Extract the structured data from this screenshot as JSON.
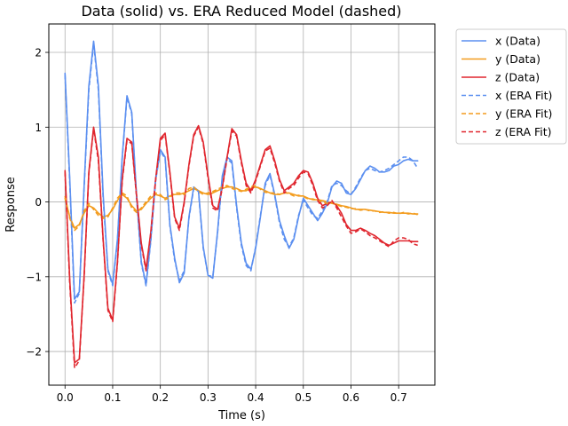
{
  "chart_data": {
    "type": "line",
    "title": "Data (solid) vs. ERA Reduced Model (dashed)",
    "xlabel": "Time (s)",
    "ylabel": "Response",
    "xlim": [
      -0.034,
      0.776
    ],
    "ylim": [
      -2.45,
      2.38
    ],
    "xticks": [
      0.0,
      0.1,
      0.2,
      0.3,
      0.4,
      0.5,
      0.6,
      0.7
    ],
    "xtick_labels": [
      "0.0",
      "0.1",
      "0.2",
      "0.3",
      "0.4",
      "0.5",
      "0.6",
      "0.7"
    ],
    "yticks": [
      -2,
      -1,
      0,
      1,
      2
    ],
    "ytick_labels": [
      "−2",
      "−1",
      "0",
      "1",
      "2"
    ],
    "grid": true,
    "legend_position": "outside-top-right",
    "series": [
      {
        "name": "x (Data)",
        "color": "#5b8ff0",
        "dash": false,
        "x": [
          0.0,
          0.01,
          0.02,
          0.03,
          0.04,
          0.05,
          0.06,
          0.07,
          0.08,
          0.09,
          0.1,
          0.11,
          0.12,
          0.13,
          0.14,
          0.15,
          0.16,
          0.17,
          0.18,
          0.19,
          0.2,
          0.21,
          0.22,
          0.23,
          0.24,
          0.25,
          0.26,
          0.27,
          0.28,
          0.29,
          0.3,
          0.31,
          0.32,
          0.33,
          0.34,
          0.35,
          0.36,
          0.37,
          0.38,
          0.39,
          0.4,
          0.41,
          0.42,
          0.43,
          0.44,
          0.45,
          0.46,
          0.47,
          0.48,
          0.49,
          0.5,
          0.51,
          0.52,
          0.53,
          0.54,
          0.55,
          0.56,
          0.57,
          0.58,
          0.59,
          0.6,
          0.61,
          0.62,
          0.63,
          0.64,
          0.65,
          0.66,
          0.67,
          0.68,
          0.69,
          0.7,
          0.71,
          0.72,
          0.73,
          0.74
        ],
        "y": [
          1.72,
          0.3,
          -1.3,
          -1.2,
          0.2,
          1.55,
          2.15,
          1.55,
          0.1,
          -0.9,
          -1.1,
          -0.5,
          0.6,
          1.42,
          1.2,
          0.1,
          -0.8,
          -1.1,
          -0.5,
          0.3,
          0.7,
          0.6,
          -0.3,
          -0.75,
          -1.08,
          -0.95,
          -0.2,
          0.2,
          0.15,
          -0.6,
          -0.98,
          -1.02,
          -0.4,
          0.35,
          0.6,
          0.55,
          -0.05,
          -0.55,
          -0.82,
          -0.9,
          -0.62,
          -0.2,
          0.25,
          0.38,
          0.1,
          -0.25,
          -0.45,
          -0.62,
          -0.5,
          -0.2,
          0.05,
          -0.05,
          -0.15,
          -0.25,
          -0.15,
          -0.02,
          0.2,
          0.28,
          0.25,
          0.12,
          0.1,
          0.18,
          0.3,
          0.42,
          0.48,
          0.45,
          0.4,
          0.4,
          0.42,
          0.48,
          0.5,
          0.55,
          0.57,
          0.55,
          0.55
        ]
      },
      {
        "name": "y (Data)",
        "color": "#f39c1e",
        "dash": false,
        "x": [
          0.0,
          0.01,
          0.02,
          0.03,
          0.04,
          0.05,
          0.06,
          0.07,
          0.08,
          0.09,
          0.1,
          0.11,
          0.12,
          0.13,
          0.14,
          0.15,
          0.16,
          0.17,
          0.18,
          0.19,
          0.2,
          0.21,
          0.22,
          0.23,
          0.24,
          0.25,
          0.26,
          0.27,
          0.28,
          0.29,
          0.3,
          0.31,
          0.32,
          0.33,
          0.34,
          0.35,
          0.36,
          0.37,
          0.38,
          0.39,
          0.4,
          0.41,
          0.42,
          0.43,
          0.44,
          0.45,
          0.46,
          0.47,
          0.48,
          0.49,
          0.5,
          0.51,
          0.52,
          0.53,
          0.54,
          0.55,
          0.56,
          0.57,
          0.58,
          0.59,
          0.6,
          0.61,
          0.62,
          0.63,
          0.64,
          0.65,
          0.66,
          0.67,
          0.68,
          0.69,
          0.7,
          0.71,
          0.72,
          0.73,
          0.74
        ],
        "y": [
          0.05,
          -0.2,
          -0.35,
          -0.3,
          -0.15,
          -0.05,
          -0.08,
          -0.15,
          -0.2,
          -0.18,
          -0.1,
          0.02,
          0.1,
          0.05,
          -0.05,
          -0.12,
          -0.1,
          -0.02,
          0.05,
          0.1,
          0.08,
          0.05,
          0.08,
          0.1,
          0.1,
          0.12,
          0.15,
          0.18,
          0.15,
          0.12,
          0.1,
          0.12,
          0.15,
          0.18,
          0.2,
          0.2,
          0.18,
          0.15,
          0.15,
          0.18,
          0.2,
          0.18,
          0.15,
          0.12,
          0.1,
          0.1,
          0.12,
          0.12,
          0.1,
          0.08,
          0.08,
          0.05,
          0.03,
          0.03,
          0.02,
          0.0,
          -0.02,
          -0.03,
          -0.05,
          -0.06,
          -0.08,
          -0.1,
          -0.1,
          -0.1,
          -0.11,
          -0.12,
          -0.13,
          -0.14,
          -0.14,
          -0.15,
          -0.15,
          -0.15,
          -0.15,
          -0.16,
          -0.16
        ]
      },
      {
        "name": "z (Data)",
        "color": "#e0262e",
        "dash": false,
        "x": [
          0.0,
          0.01,
          0.02,
          0.03,
          0.04,
          0.05,
          0.06,
          0.07,
          0.08,
          0.09,
          0.1,
          0.11,
          0.12,
          0.13,
          0.14,
          0.15,
          0.16,
          0.17,
          0.18,
          0.19,
          0.2,
          0.21,
          0.22,
          0.23,
          0.24,
          0.25,
          0.26,
          0.27,
          0.28,
          0.29,
          0.3,
          0.31,
          0.32,
          0.33,
          0.34,
          0.35,
          0.36,
          0.37,
          0.38,
          0.39,
          0.4,
          0.41,
          0.42,
          0.43,
          0.44,
          0.45,
          0.46,
          0.47,
          0.48,
          0.49,
          0.5,
          0.51,
          0.52,
          0.53,
          0.54,
          0.55,
          0.56,
          0.57,
          0.58,
          0.59,
          0.6,
          0.61,
          0.62,
          0.63,
          0.64,
          0.65,
          0.66,
          0.67,
          0.68,
          0.69,
          0.7,
          0.71,
          0.72,
          0.73,
          0.74
        ],
        "y": [
          0.42,
          -1.05,
          -2.15,
          -2.1,
          -1.0,
          0.4,
          1.0,
          0.6,
          -0.5,
          -1.42,
          -1.58,
          -0.8,
          0.3,
          0.85,
          0.8,
          0.1,
          -0.55,
          -0.9,
          -0.4,
          0.3,
          0.85,
          0.92,
          0.4,
          -0.2,
          -0.35,
          0.0,
          0.5,
          0.9,
          1.02,
          0.8,
          0.35,
          -0.05,
          -0.1,
          0.2,
          0.6,
          0.98,
          0.9,
          0.55,
          0.25,
          0.15,
          0.3,
          0.5,
          0.7,
          0.75,
          0.55,
          0.3,
          0.15,
          0.2,
          0.25,
          0.35,
          0.42,
          0.4,
          0.25,
          0.05,
          -0.05,
          -0.02,
          0.0,
          -0.05,
          -0.15,
          -0.3,
          -0.38,
          -0.38,
          -0.35,
          -0.38,
          -0.42,
          -0.45,
          -0.5,
          -0.55,
          -0.58,
          -0.55,
          -0.52,
          -0.52,
          -0.52,
          -0.53,
          -0.53
        ]
      },
      {
        "name": "x (ERA Fit)",
        "color": "#5b8ff0",
        "dash": true,
        "x": [
          0.0,
          0.01,
          0.02,
          0.03,
          0.04,
          0.05,
          0.06,
          0.07,
          0.08,
          0.09,
          0.1,
          0.11,
          0.12,
          0.13,
          0.14,
          0.15,
          0.16,
          0.17,
          0.18,
          0.19,
          0.2,
          0.21,
          0.22,
          0.23,
          0.24,
          0.25,
          0.26,
          0.27,
          0.28,
          0.29,
          0.3,
          0.31,
          0.32,
          0.33,
          0.34,
          0.35,
          0.36,
          0.37,
          0.38,
          0.39,
          0.4,
          0.41,
          0.42,
          0.43,
          0.44,
          0.45,
          0.46,
          0.47,
          0.48,
          0.49,
          0.5,
          0.51,
          0.52,
          0.53,
          0.54,
          0.55,
          0.56,
          0.57,
          0.58,
          0.59,
          0.6,
          0.61,
          0.62,
          0.63,
          0.64,
          0.65,
          0.66,
          0.67,
          0.68,
          0.69,
          0.7,
          0.71,
          0.72,
          0.73,
          0.74
        ],
        "y": [
          1.7,
          0.25,
          -1.35,
          -1.22,
          0.18,
          1.5,
          2.12,
          1.5,
          0.05,
          -0.92,
          -1.12,
          -0.52,
          0.58,
          1.4,
          1.18,
          0.08,
          -0.82,
          -1.12,
          -0.52,
          0.28,
          0.68,
          0.58,
          -0.32,
          -0.78,
          -1.05,
          -0.92,
          -0.22,
          0.18,
          0.14,
          -0.62,
          -0.98,
          -1.0,
          -0.42,
          0.32,
          0.58,
          0.52,
          -0.08,
          -0.58,
          -0.85,
          -0.92,
          -0.6,
          -0.18,
          0.22,
          0.36,
          0.08,
          -0.28,
          -0.5,
          -0.6,
          -0.48,
          -0.18,
          0.02,
          -0.08,
          -0.18,
          -0.22,
          -0.12,
          0.0,
          0.22,
          0.25,
          0.22,
          0.15,
          0.1,
          0.2,
          0.32,
          0.42,
          0.45,
          0.42,
          0.4,
          0.42,
          0.45,
          0.5,
          0.55,
          0.6,
          0.6,
          0.55,
          0.45
        ]
      },
      {
        "name": "y (ERA Fit)",
        "color": "#f39c1e",
        "dash": true,
        "x": [
          0.0,
          0.01,
          0.02,
          0.03,
          0.04,
          0.05,
          0.06,
          0.07,
          0.08,
          0.09,
          0.1,
          0.11,
          0.12,
          0.13,
          0.14,
          0.15,
          0.16,
          0.17,
          0.18,
          0.19,
          0.2,
          0.21,
          0.22,
          0.23,
          0.24,
          0.25,
          0.26,
          0.27,
          0.28,
          0.29,
          0.3,
          0.31,
          0.32,
          0.33,
          0.34,
          0.35,
          0.36,
          0.37,
          0.38,
          0.39,
          0.4,
          0.41,
          0.42,
          0.43,
          0.44,
          0.45,
          0.46,
          0.47,
          0.48,
          0.49,
          0.5,
          0.51,
          0.52,
          0.53,
          0.54,
          0.55,
          0.56,
          0.57,
          0.58,
          0.59,
          0.6,
          0.61,
          0.62,
          0.63,
          0.64,
          0.65,
          0.66,
          0.67,
          0.68,
          0.69,
          0.7,
          0.71,
          0.72,
          0.73,
          0.74
        ],
        "y": [
          0.08,
          -0.22,
          -0.38,
          -0.32,
          -0.12,
          -0.02,
          -0.1,
          -0.18,
          -0.22,
          -0.2,
          -0.08,
          0.05,
          0.12,
          0.08,
          -0.08,
          -0.14,
          -0.08,
          0.0,
          0.08,
          0.12,
          0.1,
          0.03,
          0.06,
          0.12,
          0.12,
          0.1,
          0.18,
          0.2,
          0.14,
          0.1,
          0.12,
          0.14,
          0.17,
          0.2,
          0.22,
          0.18,
          0.16,
          0.14,
          0.17,
          0.2,
          0.22,
          0.17,
          0.13,
          0.12,
          0.12,
          0.1,
          0.13,
          0.11,
          0.08,
          0.09,
          0.07,
          0.04,
          0.04,
          0.02,
          0.0,
          -0.02,
          -0.01,
          -0.04,
          -0.06,
          -0.07,
          -0.09,
          -0.09,
          -0.11,
          -0.1,
          -0.12,
          -0.12,
          -0.14,
          -0.13,
          -0.15,
          -0.14,
          -0.16,
          -0.14,
          -0.16,
          -0.15,
          -0.17
        ]
      },
      {
        "name": "z (ERA Fit)",
        "color": "#e0262e",
        "dash": true,
        "x": [
          0.0,
          0.01,
          0.02,
          0.03,
          0.04,
          0.05,
          0.06,
          0.07,
          0.08,
          0.09,
          0.1,
          0.11,
          0.12,
          0.13,
          0.14,
          0.15,
          0.16,
          0.17,
          0.18,
          0.19,
          0.2,
          0.21,
          0.22,
          0.23,
          0.24,
          0.25,
          0.26,
          0.27,
          0.28,
          0.29,
          0.3,
          0.31,
          0.32,
          0.33,
          0.34,
          0.35,
          0.36,
          0.37,
          0.38,
          0.39,
          0.4,
          0.41,
          0.42,
          0.43,
          0.44,
          0.45,
          0.46,
          0.47,
          0.48,
          0.49,
          0.5,
          0.51,
          0.52,
          0.53,
          0.54,
          0.55,
          0.56,
          0.57,
          0.58,
          0.59,
          0.6,
          0.61,
          0.62,
          0.63,
          0.64,
          0.65,
          0.66,
          0.67,
          0.68,
          0.69,
          0.7,
          0.71,
          0.72,
          0.73,
          0.74
        ],
        "y": [
          0.4,
          -1.1,
          -2.22,
          -2.12,
          -1.02,
          0.38,
          0.98,
          0.55,
          -0.52,
          -1.45,
          -1.6,
          -0.82,
          0.28,
          0.82,
          0.78,
          0.08,
          -0.58,
          -0.92,
          -0.42,
          0.28,
          0.82,
          0.9,
          0.38,
          -0.22,
          -0.38,
          -0.02,
          0.48,
          0.88,
          1.0,
          0.78,
          0.32,
          -0.08,
          -0.12,
          0.18,
          0.58,
          0.95,
          0.88,
          0.52,
          0.22,
          0.12,
          0.28,
          0.48,
          0.68,
          0.72,
          0.52,
          0.28,
          0.12,
          0.18,
          0.22,
          0.32,
          0.4,
          0.38,
          0.22,
          0.02,
          -0.08,
          -0.05,
          0.02,
          -0.08,
          -0.2,
          -0.32,
          -0.42,
          -0.4,
          -0.36,
          -0.4,
          -0.45,
          -0.48,
          -0.52,
          -0.56,
          -0.6,
          -0.52,
          -0.48,
          -0.48,
          -0.5,
          -0.56,
          -0.58
        ]
      }
    ]
  }
}
